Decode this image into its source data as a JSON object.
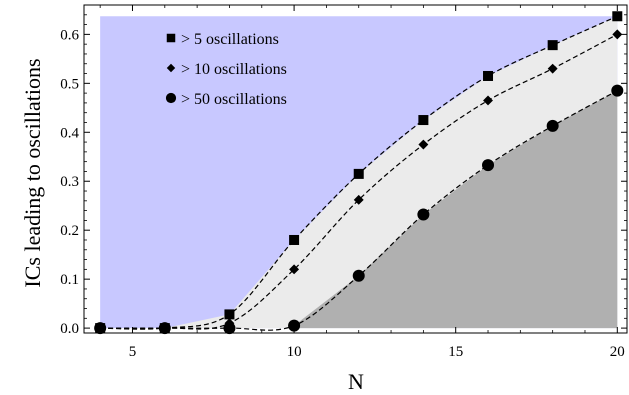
{
  "chart_data": {
    "type": "area",
    "xlabel": "N",
    "ylabel": "ICs leading to oscillations",
    "xlim": [
      3.5,
      20.3
    ],
    "ylim": [
      -0.01,
      0.66
    ],
    "xticks": [
      5,
      10,
      15,
      20
    ],
    "yticks": [
      0.0,
      0.1,
      0.2,
      0.3,
      0.4,
      0.5,
      0.6
    ],
    "ytick_labels": [
      "0.0",
      "0.1",
      "0.2",
      "0.3",
      "0.4",
      "0.5",
      "0.6"
    ],
    "x": [
      4,
      6,
      8,
      10,
      12,
      14,
      16,
      18,
      20
    ],
    "series": [
      {
        "name": "> 5 oscillations",
        "marker": "square",
        "values": [
          0.0,
          0.0,
          0.028,
          0.18,
          0.315,
          0.425,
          0.515,
          0.578,
          0.637
        ]
      },
      {
        "name": "> 10 oscillations",
        "marker": "diamond",
        "values": [
          0.0,
          0.0,
          0.01,
          0.12,
          0.262,
          0.375,
          0.465,
          0.53,
          0.6
        ]
      },
      {
        "name": "> 50 oscillations",
        "marker": "circle",
        "values": [
          0.0,
          0.0,
          0.0,
          0.005,
          0.107,
          0.232,
          0.333,
          0.413,
          0.485
        ]
      }
    ],
    "fill_colors": {
      "background": "#c8c8ff",
      "middle": "#ebebeb",
      "bottom": "#b0b0b0"
    },
    "legend_position": "top-left",
    "grid": false
  }
}
